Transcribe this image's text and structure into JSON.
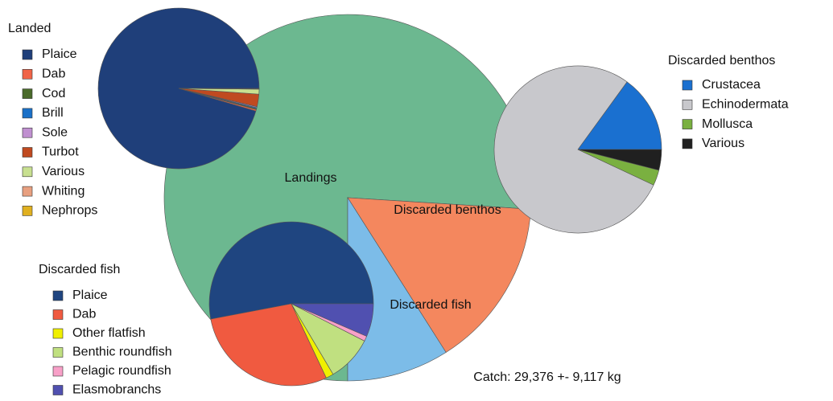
{
  "chart_data": [
    {
      "type": "pie",
      "categories": [
        "Landings",
        "Discarded benthos",
        "Discarded fish"
      ],
      "values": [
        76,
        15,
        9
      ],
      "colors": [
        "#6cb890",
        "#f4875e",
        "#7cbce8"
      ],
      "annotation": "Catch: 29,376 +- 9,117 kg"
    },
    {
      "type": "pie",
      "title": "Landed",
      "categories": [
        "Plaice",
        "Dab",
        "Cod",
        "Brill",
        "Sole",
        "Turbot",
        "Various",
        "Whiting",
        "Nephrops"
      ],
      "values": [
        95.5,
        0.3,
        0.2,
        0.2,
        0.2,
        2.5,
        1,
        0.1,
        0.05
      ],
      "colors": [
        "#1f3f7a",
        "#f06448",
        "#4a6a2a",
        "#1a70c8",
        "#c090d0",
        "#c04a20",
        "#c8e090",
        "#e8a080",
        "#e0b020"
      ]
    },
    {
      "type": "pie",
      "title": "Discarded benthos",
      "categories": [
        "Crustacea",
        "Echinodermata",
        "Mollusca",
        "Various"
      ],
      "values": [
        15,
        78,
        3,
        4
      ],
      "colors": [
        "#1a70d0",
        "#c8c8cc",
        "#7ab040",
        "#202020"
      ]
    },
    {
      "type": "pie",
      "title": "Discarded fish",
      "categories": [
        "Plaice",
        "Dab",
        "Other flatfish",
        "Benthic roundfish",
        "Pelagic roundfish",
        "Elasmobranchs"
      ],
      "values": [
        53,
        29,
        1.5,
        9,
        1,
        6.5
      ],
      "colors": [
        "#1f4580",
        "#f05a40",
        "#f0f000",
        "#c0e080",
        "#f8a0c8",
        "#5050b0"
      ]
    }
  ]
}
